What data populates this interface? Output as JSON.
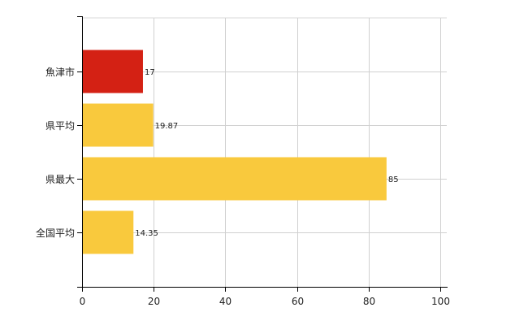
{
  "chart_data": {
    "type": "bar",
    "orientation": "horizontal",
    "categories": [
      "魚津市",
      "県平均",
      "県最大",
      "全国平均"
    ],
    "values": [
      17,
      19.87,
      85,
      14.35
    ],
    "value_labels": [
      "17",
      "19.87",
      "85",
      "14.35"
    ],
    "colors": [
      "#d42114",
      "#f9c93d",
      "#f9c93d",
      "#f9c93d"
    ],
    "xlim": [
      0,
      100
    ],
    "x_ticks": [
      0,
      20,
      40,
      60,
      80,
      100
    ],
    "grid": true,
    "title": "",
    "xlabel": "",
    "ylabel": ""
  }
}
